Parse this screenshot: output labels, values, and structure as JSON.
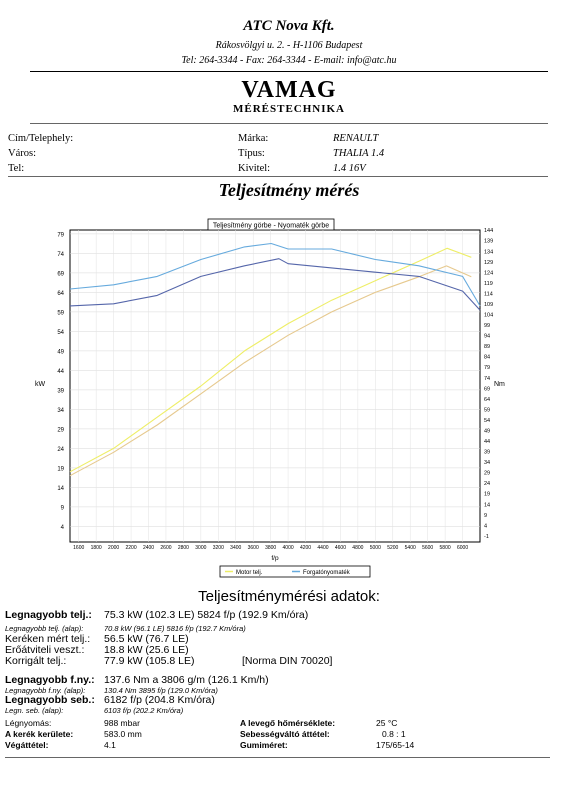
{
  "header": {
    "company": "ATC Nova Kft.",
    "address": "Rákosvölgyi u. 2. - H-1106 Budapest",
    "contact": "Tel: 264-3344 - Fax: 264-3344 - E-mail: info@atc.hu",
    "brand": "VAMAG",
    "subtitle": "MÉRÉSTECHNIKA"
  },
  "customer": {
    "address_label": "Cím/Telephely:",
    "city_label": "Város:",
    "phone_label": "Tel:"
  },
  "vehicle": {
    "make_label": "Márka:",
    "make": "RENAULT",
    "type_label": "Típus:",
    "type": "THALIA 1.4",
    "variant_label": "Kivitel:",
    "variant": "1.4 16V"
  },
  "page_title": "Teljesítmény mérés",
  "chart_data": {
    "type": "line",
    "title": "Teljesítmény görbe - Nyomaték görbe",
    "xlabel": "f/p",
    "ylabel_left": "kW",
    "ylabel_right": "Nm",
    "x_ticks": [
      "1600",
      "1800",
      "2000",
      "2200",
      "2400",
      "2600",
      "2800",
      "3000",
      "3200",
      "3400",
      "3600",
      "3800",
      "4000",
      "4200",
      "4400",
      "4600",
      "4800",
      "5000",
      "5200",
      "5400",
      "5600",
      "5800",
      "6000"
    ],
    "y_left_ticks": [
      "4",
      "9",
      "14",
      "19",
      "24",
      "29",
      "34",
      "39",
      "44",
      "49",
      "54",
      "59",
      "64",
      "69",
      "74",
      "79"
    ],
    "y_right_ticks": [
      "-1",
      "4",
      "9",
      "14",
      "19",
      "24",
      "29",
      "34",
      "39",
      "44",
      "49",
      "54",
      "59",
      "64",
      "69",
      "74",
      "79",
      "84",
      "89",
      "94",
      "99",
      "104",
      "109",
      "114",
      "119",
      "124",
      "129",
      "134",
      "139",
      "144"
    ],
    "xlim": [
      1500,
      6200
    ],
    "ylim_left": [
      0,
      80
    ],
    "ylim_right": [
      -4,
      144
    ],
    "legend": [
      "Motor telj.",
      "Forgatónyomaték"
    ],
    "legend_position": "bottom",
    "series": [
      {
        "name": "Motor telj.",
        "axis": "left",
        "color": "#eeee66",
        "x": [
          1500,
          2000,
          2500,
          3000,
          3500,
          4000,
          4500,
          5000,
          5500,
          5824,
          6100
        ],
        "values": [
          18,
          24,
          32,
          40,
          49,
          56,
          62,
          67,
          72,
          75.3,
          73
        ]
      },
      {
        "name": "Motor telj.",
        "axis": "left",
        "color": "#e6c98e",
        "x": [
          1500,
          2000,
          2500,
          3000,
          3500,
          4000,
          4500,
          5000,
          5500,
          5816,
          6100
        ],
        "values": [
          17,
          23,
          30,
          38,
          46,
          53,
          59,
          64,
          68,
          70.8,
          68
        ]
      },
      {
        "name": "Forgatónyomaték",
        "axis": "right",
        "color": "#66aadd",
        "x": [
          1500,
          2000,
          2500,
          3000,
          3500,
          3806,
          4000,
          4500,
          5000,
          5500,
          6000,
          6200
        ],
        "values": [
          116,
          118,
          122,
          130,
          136,
          137.6,
          135,
          135,
          130,
          127,
          122,
          108
        ]
      },
      {
        "name": "Forgatónyomaték",
        "axis": "right",
        "color": "#5566aa",
        "x": [
          1500,
          2000,
          2500,
          3000,
          3500,
          3895,
          4000,
          4500,
          5000,
          5500,
          6000,
          6200
        ],
        "values": [
          108,
          109,
          113,
          122,
          127,
          130.4,
          128,
          126,
          124,
          122,
          115,
          106
        ]
      }
    ]
  },
  "results": {
    "heading": "Teljesítménymérési adatok:",
    "rows": [
      {
        "label": "Legnagyobb telj.:",
        "value": "75.3 kW (102.3 LE)  5824 f/p (192.9 Km/óra)"
      },
      {
        "label": "Legnagyobb telj. (alap):",
        "value": "70.8 kW (96.1 LE)  5816 f/p (192.7 Km/óra)"
      },
      {
        "label": "Keréken mért telj.:",
        "value": "56.5 kW (76.7 LE)"
      },
      {
        "label": "Erőátviteli veszt.:",
        "value": "18.8 kW (25.6 LE)"
      },
      {
        "label": "Korrigált telj.:",
        "value": "77.9 kW (105.8 LE)",
        "note": "[Norma DIN 70020]"
      },
      {
        "label": "Legnagyobb f.ny.:",
        "value": "137.6 Nm a 3806 g/m (126.1 Km/h)"
      },
      {
        "label": "Legnagyobb f.ny. (alap):",
        "value": "130.4 Nm  3895 f/p (129.0 Km/óra)"
      },
      {
        "label": "Legnagyobb seb.:",
        "value": "6182 f/p (204.8 Km/óra)"
      },
      {
        "label": "Legn. seb. (alap):",
        "value": "6103 f/p (202.2 Km/óra)"
      }
    ]
  },
  "conditions": {
    "pressure_label": "Légnyomás:",
    "pressure": "988 mbar",
    "wheel_label": "A kerék kerülete:",
    "wheel": "583.0 mm",
    "ratio_label": "Végáttétel:",
    "ratio": "4.1",
    "temp_label": "A levegő hőmérséklete:",
    "temp": "25 °C",
    "gear_label": "Sebességváltó áttétel:",
    "gear": "0.8 : 1",
    "tire_label": "Gumiméret:",
    "tire": "175/65-14"
  }
}
